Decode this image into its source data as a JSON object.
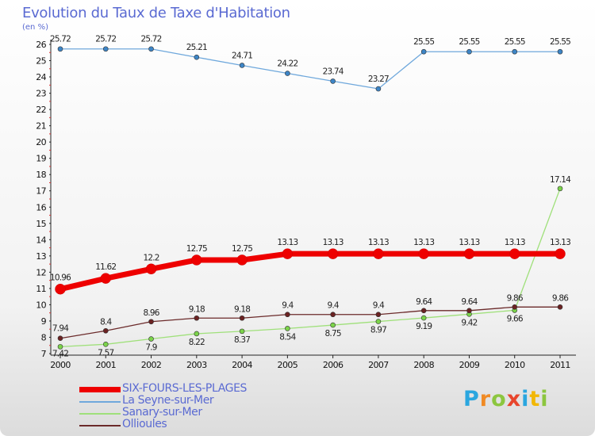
{
  "header": {
    "title": "Evolution du Taux de Taxe d'Habitation",
    "subtitle": "(en %)"
  },
  "logo": {
    "letters": [
      "P",
      "r",
      "o",
      "x",
      "i",
      "t",
      "i"
    ],
    "colors": [
      "#2aa6df",
      "#f08a24",
      "#8cc63f",
      "#e8452c",
      "#2aa6df",
      "#f2b705",
      "#8cc63f"
    ]
  },
  "chart_data": {
    "type": "line",
    "title": "Evolution du Taux de Taxe d'Habitation",
    "subtitle": "(en %)",
    "x": [
      "2000",
      "2001",
      "2002",
      "2003",
      "2004",
      "2005",
      "2006",
      "2007",
      "2008",
      "2009",
      "2010",
      "2011"
    ],
    "ylim": [
      7,
      26
    ],
    "yticks": [
      7,
      8,
      9,
      10,
      11,
      12,
      13,
      14,
      15,
      16,
      17,
      18,
      19,
      20,
      21,
      22,
      23,
      24,
      25,
      26
    ],
    "grid": false,
    "legend_position": "bottom-left",
    "series": [
      {
        "name": "SIX-FOURS-LES-PLAGES",
        "color": "#ee0000",
        "values": [
          10.96,
          11.62,
          12.2,
          12.75,
          12.75,
          13.13,
          13.13,
          13.13,
          13.13,
          13.13,
          13.13,
          13.13
        ],
        "labels": [
          "10.96",
          "11.62",
          "12.2",
          "12.75",
          "12.75",
          "13.13",
          "13.13",
          "13.13",
          "13.13",
          "13.13",
          "13.13",
          "13.13"
        ]
      },
      {
        "name": "La Seyne-sur-Mer",
        "color": "#6fa8dc",
        "values": [
          25.72,
          25.72,
          25.72,
          25.21,
          24.71,
          24.22,
          23.74,
          23.27,
          25.55,
          25.55,
          25.55,
          25.55
        ],
        "labels": [
          "25.72",
          "25.72",
          "25.72",
          "25.21",
          "24.71",
          "24.22",
          "23.74",
          "23.27",
          "25.55",
          "25.55",
          "25.55",
          "25.55"
        ]
      },
      {
        "name": "Sanary-sur-Mer",
        "color": "#9fe07a",
        "values": [
          7.42,
          7.57,
          7.9,
          8.22,
          8.37,
          8.54,
          8.75,
          8.97,
          9.19,
          9.42,
          9.66,
          17.14
        ],
        "labels": [
          "7.42",
          "7.57",
          "7.9",
          "8.22",
          "8.37",
          "8.54",
          "8.75",
          "8.97",
          "9.19",
          "9.42",
          "9.66",
          "17.14"
        ]
      },
      {
        "name": "Ollioules",
        "color": "#6b2a2a",
        "values": [
          7.94,
          8.4,
          8.96,
          9.18,
          9.18,
          9.4,
          9.4,
          9.4,
          9.64,
          9.64,
          9.86,
          9.86
        ],
        "labels": [
          "7.94",
          "8.4",
          "8.96",
          "9.18",
          "9.18",
          "9.4",
          "9.4",
          "9.4",
          "9.64",
          "9.64",
          "9.86",
          "9.86"
        ]
      }
    ]
  }
}
